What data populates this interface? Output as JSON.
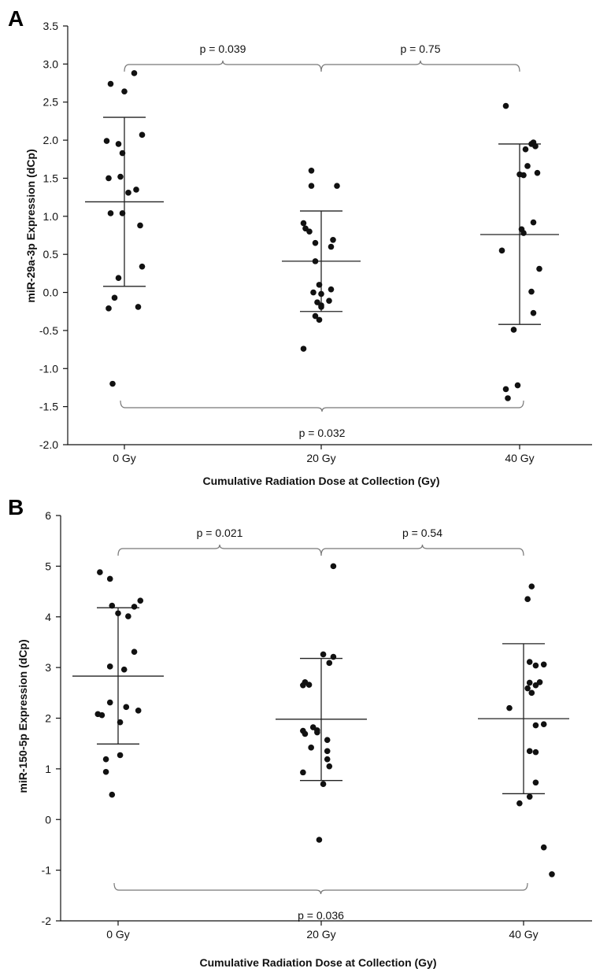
{
  "chart_data": [
    {
      "panel": "A",
      "type": "scatter",
      "xlabel": "Cumulative Radiation Dose at Collection (Gy)",
      "ylabel": "miR-29a-3p Expression (dCp)",
      "categories": [
        "0 Gy",
        "20 Gy",
        "40 Gy"
      ],
      "yticks": [
        "-2.0",
        "-1.5",
        "-1.0",
        "-0.5",
        "0.0",
        "0.5",
        "1.0",
        "1.5",
        "2.0",
        "2.5",
        "3.0",
        "3.5"
      ],
      "ylim": [
        -2.0,
        3.5
      ],
      "grid": false,
      "groups": [
        {
          "category": "0 Gy",
          "mean": 1.19,
          "sd_low": 0.08,
          "sd_high": 2.3,
          "points": [
            {
              "dx": -0.07,
              "y": 2.74
            },
            {
              "dx": 0.05,
              "y": 2.88
            },
            {
              "dx": 0.0,
              "y": 2.64
            },
            {
              "dx": -0.09,
              "y": 1.99
            },
            {
              "dx": 0.09,
              "y": 2.07
            },
            {
              "dx": -0.03,
              "y": 1.95
            },
            {
              "dx": -0.01,
              "y": 1.83
            },
            {
              "dx": -0.08,
              "y": 1.5
            },
            {
              "dx": -0.02,
              "y": 1.52
            },
            {
              "dx": 0.02,
              "y": 1.31
            },
            {
              "dx": 0.06,
              "y": 1.35
            },
            {
              "dx": -0.07,
              "y": 1.04
            },
            {
              "dx": -0.01,
              "y": 1.04
            },
            {
              "dx": 0.08,
              "y": 0.88
            },
            {
              "dx": 0.09,
              "y": 0.34
            },
            {
              "dx": -0.03,
              "y": 0.19
            },
            {
              "dx": -0.05,
              "y": -0.07
            },
            {
              "dx": -0.08,
              "y": -0.21
            },
            {
              "dx": 0.07,
              "y": -0.19
            },
            {
              "dx": -0.06,
              "y": -1.2
            }
          ]
        },
        {
          "category": "20 Gy",
          "mean": 0.41,
          "sd_low": -0.25,
          "sd_high": 1.07,
          "points": [
            {
              "dx": -0.05,
              "y": 1.6
            },
            {
              "dx": -0.05,
              "y": 1.4
            },
            {
              "dx": 0.08,
              "y": 1.4
            },
            {
              "dx": -0.09,
              "y": 0.91
            },
            {
              "dx": -0.08,
              "y": 0.84
            },
            {
              "dx": -0.06,
              "y": 0.8
            },
            {
              "dx": 0.06,
              "y": 0.69
            },
            {
              "dx": -0.03,
              "y": 0.65
            },
            {
              "dx": 0.05,
              "y": 0.6
            },
            {
              "dx": -0.03,
              "y": 0.41
            },
            {
              "dx": -0.01,
              "y": 0.1
            },
            {
              "dx": 0.05,
              "y": 0.04
            },
            {
              "dx": -0.04,
              "y": 0.0
            },
            {
              "dx": 0.0,
              "y": -0.02
            },
            {
              "dx": 0.04,
              "y": -0.11
            },
            {
              "dx": -0.02,
              "y": -0.13
            },
            {
              "dx": 0.0,
              "y": -0.17
            },
            {
              "dx": 0.0,
              "y": -0.19
            },
            {
              "dx": -0.03,
              "y": -0.31
            },
            {
              "dx": -0.01,
              "y": -0.36
            },
            {
              "dx": -0.09,
              "y": -0.74
            }
          ]
        },
        {
          "category": "40 Gy",
          "mean": 0.76,
          "sd_low": -0.42,
          "sd_high": 1.95,
          "points": [
            {
              "dx": -0.07,
              "y": 2.45
            },
            {
              "dx": 0.07,
              "y": 1.97
            },
            {
              "dx": 0.06,
              "y": 1.95
            },
            {
              "dx": 0.03,
              "y": 1.88
            },
            {
              "dx": 0.08,
              "y": 1.92
            },
            {
              "dx": 0.04,
              "y": 1.66
            },
            {
              "dx": 0.09,
              "y": 1.57
            },
            {
              "dx": 0.0,
              "y": 1.55
            },
            {
              "dx": 0.02,
              "y": 1.54
            },
            {
              "dx": 0.07,
              "y": 0.92
            },
            {
              "dx": 0.01,
              "y": 0.83
            },
            {
              "dx": 0.02,
              "y": 0.78
            },
            {
              "dx": -0.09,
              "y": 0.55
            },
            {
              "dx": 0.1,
              "y": 0.31
            },
            {
              "dx": 0.06,
              "y": 0.01
            },
            {
              "dx": 0.07,
              "y": -0.27
            },
            {
              "dx": -0.03,
              "y": -0.49
            },
            {
              "dx": -0.01,
              "y": -1.22
            },
            {
              "dx": -0.07,
              "y": -1.27
            },
            {
              "dx": -0.06,
              "y": -1.39
            }
          ]
        }
      ],
      "comparisons": [
        {
          "from": "0 Gy",
          "to": "20 Gy",
          "label": "p = 0.039",
          "position": "top"
        },
        {
          "from": "20 Gy",
          "to": "40 Gy",
          "label": "p = 0.75",
          "position": "top"
        },
        {
          "from": "0 Gy",
          "to": "40 Gy",
          "label": "p = 0.032",
          "position": "bottom"
        }
      ]
    },
    {
      "panel": "B",
      "type": "scatter",
      "xlabel": "Cumulative Radiation Dose at Collection (Gy)",
      "ylabel": "miR-150-5p Expression (dCp)",
      "categories": [
        "0 Gy",
        "20 Gy",
        "40 Gy"
      ],
      "yticks": [
        "-2",
        "-1",
        "0",
        "1",
        "2",
        "3",
        "4",
        "5",
        "6"
      ],
      "ylim": [
        -2,
        6
      ],
      "grid": false,
      "groups": [
        {
          "category": "0 Gy",
          "mean": 2.83,
          "sd_low": 1.49,
          "sd_high": 4.18,
          "points": [
            {
              "dx": -0.09,
              "y": 4.88
            },
            {
              "dx": -0.04,
              "y": 4.75
            },
            {
              "dx": 0.11,
              "y": 4.32
            },
            {
              "dx": -0.03,
              "y": 4.22
            },
            {
              "dx": 0.08,
              "y": 4.2
            },
            {
              "dx": 0.0,
              "y": 4.07
            },
            {
              "dx": 0.05,
              "y": 4.01
            },
            {
              "dx": 0.08,
              "y": 3.31
            },
            {
              "dx": -0.04,
              "y": 3.02
            },
            {
              "dx": 0.03,
              "y": 2.96
            },
            {
              "dx": 0.04,
              "y": 2.22
            },
            {
              "dx": 0.1,
              "y": 2.15
            },
            {
              "dx": -0.04,
              "y": 2.31
            },
            {
              "dx": -0.08,
              "y": 2.06
            },
            {
              "dx": -0.1,
              "y": 2.08
            },
            {
              "dx": 0.01,
              "y": 1.92
            },
            {
              "dx": 0.01,
              "y": 1.27
            },
            {
              "dx": -0.06,
              "y": 1.19
            },
            {
              "dx": -0.06,
              "y": 0.94
            },
            {
              "dx": -0.03,
              "y": 0.49
            }
          ]
        },
        {
          "category": "20 Gy",
          "mean": 1.98,
          "sd_low": 0.77,
          "sd_high": 3.18,
          "points": [
            {
              "dx": 0.06,
              "y": 5.0
            },
            {
              "dx": 0.01,
              "y": 3.26
            },
            {
              "dx": 0.06,
              "y": 3.21
            },
            {
              "dx": 0.04,
              "y": 3.09
            },
            {
              "dx": -0.08,
              "y": 2.71
            },
            {
              "dx": -0.09,
              "y": 2.65
            },
            {
              "dx": -0.06,
              "y": 2.66
            },
            {
              "dx": -0.04,
              "y": 1.82
            },
            {
              "dx": -0.02,
              "y": 1.76
            },
            {
              "dx": -0.09,
              "y": 1.75
            },
            {
              "dx": -0.08,
              "y": 1.69
            },
            {
              "dx": -0.02,
              "y": 1.72
            },
            {
              "dx": 0.03,
              "y": 1.57
            },
            {
              "dx": -0.05,
              "y": 1.42
            },
            {
              "dx": 0.03,
              "y": 1.35
            },
            {
              "dx": 0.03,
              "y": 1.19
            },
            {
              "dx": 0.04,
              "y": 1.05
            },
            {
              "dx": -0.09,
              "y": 0.93
            },
            {
              "dx": 0.01,
              "y": 0.7
            },
            {
              "dx": -0.01,
              "y": -0.4
            }
          ]
        },
        {
          "category": "40 Gy",
          "mean": 1.99,
          "sd_low": 0.51,
          "sd_high": 3.47,
          "points": [
            {
              "dx": 0.04,
              "y": 4.6
            },
            {
              "dx": 0.02,
              "y": 4.35
            },
            {
              "dx": 0.03,
              "y": 3.11
            },
            {
              "dx": 0.1,
              "y": 3.06
            },
            {
              "dx": 0.06,
              "y": 3.04
            },
            {
              "dx": 0.03,
              "y": 2.7
            },
            {
              "dx": 0.08,
              "y": 2.71
            },
            {
              "dx": 0.06,
              "y": 2.65
            },
            {
              "dx": 0.02,
              "y": 2.59
            },
            {
              "dx": 0.04,
              "y": 2.5
            },
            {
              "dx": -0.07,
              "y": 2.2
            },
            {
              "dx": 0.06,
              "y": 1.86
            },
            {
              "dx": 0.1,
              "y": 1.88
            },
            {
              "dx": 0.03,
              "y": 1.35
            },
            {
              "dx": 0.06,
              "y": 1.33
            },
            {
              "dx": 0.06,
              "y": 0.73
            },
            {
              "dx": 0.03,
              "y": 0.45
            },
            {
              "dx": -0.02,
              "y": 0.32
            },
            {
              "dx": 0.1,
              "y": -0.55
            },
            {
              "dx": 0.14,
              "y": -1.08
            }
          ]
        }
      ],
      "comparisons": [
        {
          "from": "0 Gy",
          "to": "20 Gy",
          "label": "p = 0.021",
          "position": "top"
        },
        {
          "from": "20 Gy",
          "to": "40 Gy",
          "label": "p = 0.54",
          "position": "top"
        },
        {
          "from": "0 Gy",
          "to": "40 Gy",
          "label": "p = 0.036",
          "position": "bottom"
        }
      ]
    }
  ]
}
